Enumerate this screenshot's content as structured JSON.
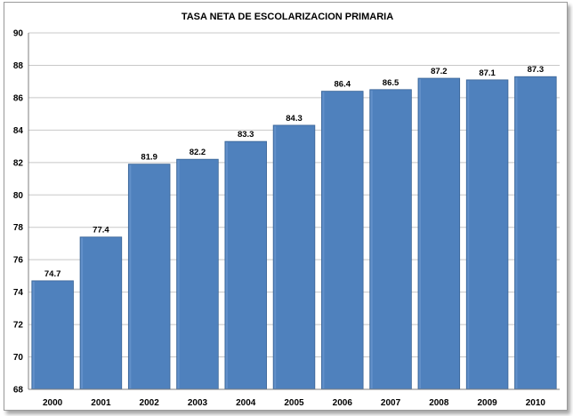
{
  "chart_data": {
    "type": "bar",
    "title": "TASA NETA DE ESCOLARIZACION PRIMARIA",
    "xlabel": "",
    "ylabel": "",
    "categories": [
      "2000",
      "2001",
      "2002",
      "2003",
      "2004",
      "2005",
      "2006",
      "2007",
      "2008",
      "2009",
      "2010"
    ],
    "values": [
      74.7,
      77.4,
      81.9,
      82.2,
      83.3,
      84.3,
      86.4,
      86.5,
      87.2,
      87.1,
      87.3
    ],
    "data_labels": [
      "74.7",
      "77.4",
      "81.9",
      "82.2",
      "83.3",
      "84.3",
      "86.4",
      "86.5",
      "87.2",
      "87.1",
      "87.3"
    ],
    "ylim": [
      68,
      90
    ],
    "yticks": [
      68,
      70,
      72,
      74,
      76,
      78,
      80,
      82,
      84,
      86,
      88,
      90
    ],
    "grid": true,
    "legend": "none",
    "colors": {
      "bar": "#4f81bd",
      "bar_edge": "#3a6496",
      "grid": "#c8c8c8",
      "axis": "#7f7f7f"
    }
  }
}
